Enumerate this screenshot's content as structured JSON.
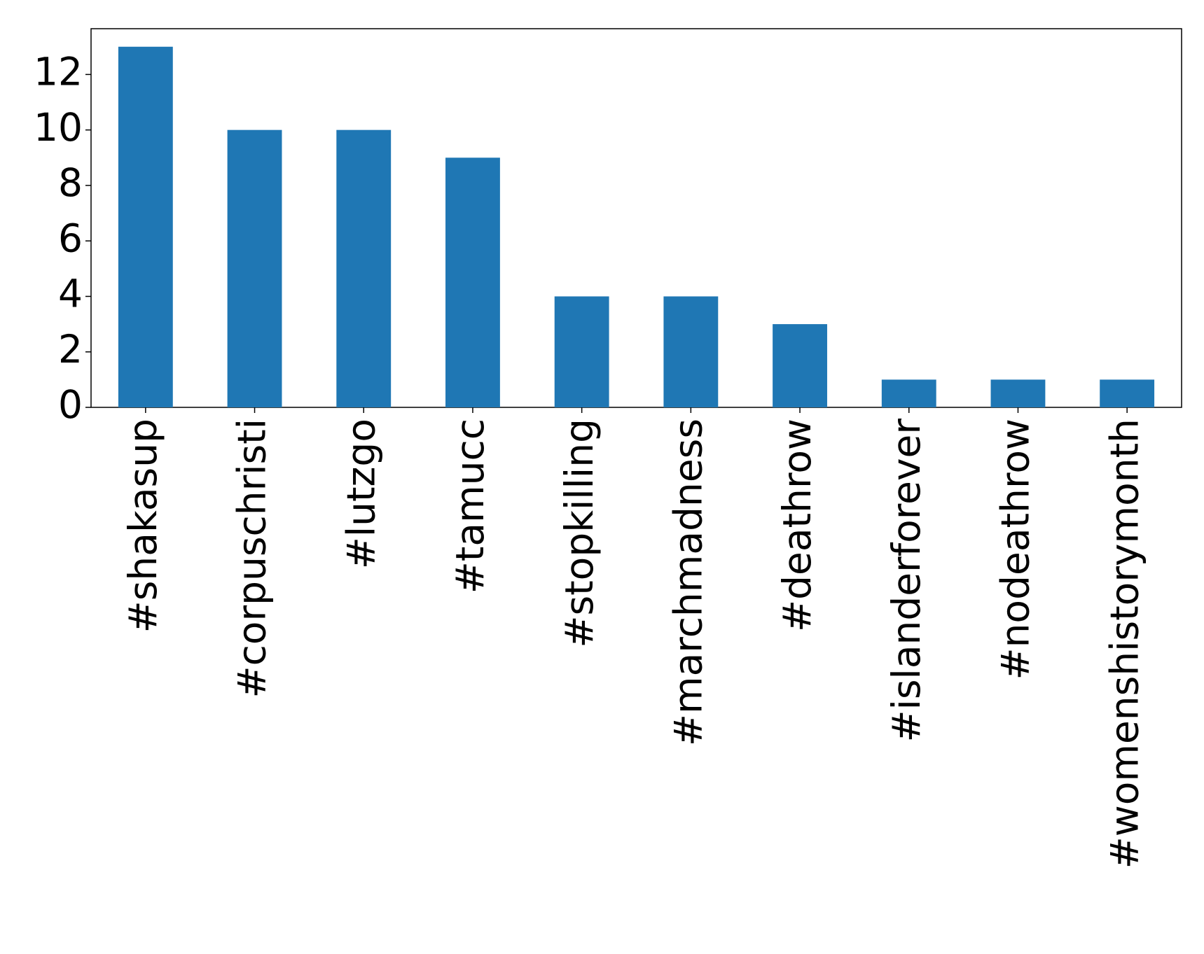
{
  "chart_data": {
    "type": "bar",
    "categories": [
      "#shakasup",
      "#corpuschristi",
      "#lutzgo",
      "#tamucc",
      "#stopkilling",
      "#marchmadness",
      "#deathrow",
      "#islanderforever",
      "#nodeathrow",
      "#womenshistorymonth"
    ],
    "values": [
      13,
      10,
      10,
      9,
      4,
      4,
      3,
      1,
      1,
      1
    ],
    "color": "#1f77b4",
    "ylim": [
      0,
      13.65
    ],
    "yticks": [
      0,
      2,
      4,
      6,
      8,
      10,
      12
    ],
    "grid": false
  }
}
